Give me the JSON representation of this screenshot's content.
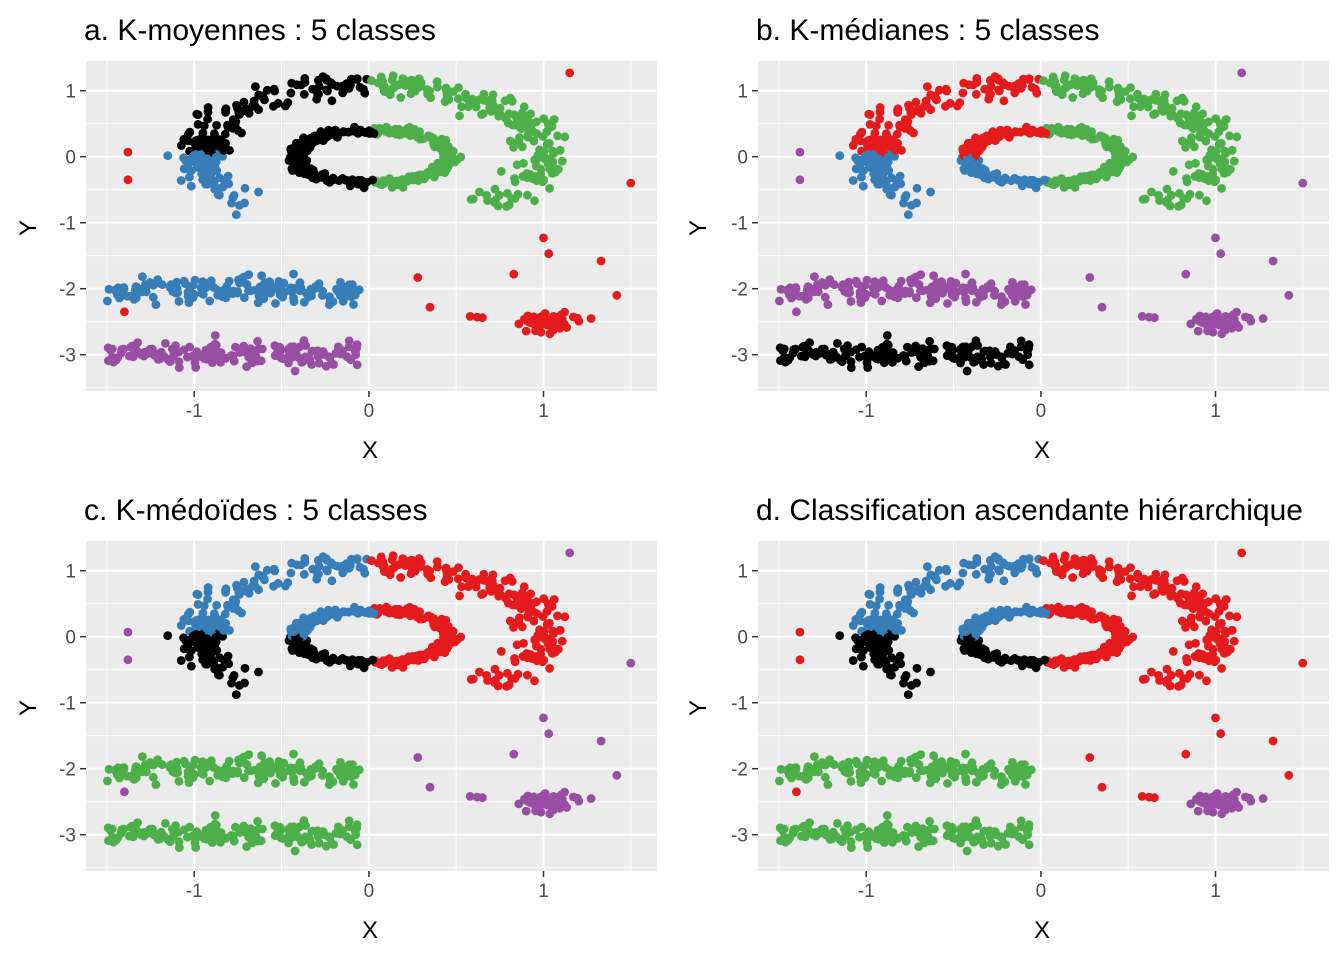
{
  "figure": {
    "shared_axes": {
      "xlabel": "X",
      "ylabel": "Y",
      "xlim": [
        -1.62,
        1.65
      ],
      "ylim": [
        -3.55,
        1.45
      ],
      "xticks": [
        -1,
        0,
        1
      ],
      "xtick_labels": [
        "-1",
        "0",
        "1"
      ],
      "yticks": [
        1,
        0,
        -1,
        -2,
        -3
      ],
      "ytick_labels": [
        "1",
        "0",
        "-1",
        "-2",
        "-3"
      ]
    },
    "cluster_colors": {
      "black": "#000000",
      "red": "#E41A1C",
      "blue": "#377EB8",
      "green": "#4DAF4A",
      "purple": "#984EA3"
    },
    "panel_background": "#EBEBEB",
    "grid_color": "#FFFFFF"
  },
  "chart_data": [
    {
      "type": "scatter",
      "title": "a. K-moyennes : 5 classes",
      "xlabel": "X",
      "ylabel": "Y",
      "xlim": [
        -1.62,
        1.65
      ],
      "ylim": [
        -3.55,
        1.45
      ],
      "grid": true,
      "legend": "none",
      "groups": {
        "outer_upper_left": "black",
        "outer_upper_right": "green",
        "outer_lower_left": "blue",
        "outer_lower_right": "green",
        "inner_upper_left": "black",
        "inner_upper_right": "green",
        "inner_lower_left": "black",
        "inner_lower_right": "green",
        "band_upper": "blue",
        "band_lower": "purple",
        "right_cluster": "red",
        "scatter_outliers": "red"
      },
      "series": [
        {
          "color": "black",
          "structures": [
            "outer arc, upper-left part",
            "inner ring, left part"
          ]
        },
        {
          "color": "green",
          "structures": [
            "outer arc, right part",
            "inner ring, right part"
          ]
        },
        {
          "color": "blue",
          "structures": [
            "outer arc, lower-left part",
            "band at y = -2"
          ]
        },
        {
          "color": "purple",
          "structures": [
            "band at y = -3"
          ]
        },
        {
          "color": "red",
          "structures": [
            "cluster near (1.0, -2.5)",
            "sparse outliers"
          ]
        }
      ]
    },
    {
      "type": "scatter",
      "title": "b. K-médianes : 5 classes",
      "xlabel": "X",
      "ylabel": "Y",
      "xlim": [
        -1.62,
        1.65
      ],
      "ylim": [
        -3.55,
        1.45
      ],
      "grid": true,
      "legend": "none",
      "groups": {
        "outer_upper_left": "red",
        "outer_upper_right": "green",
        "outer_lower_left": "blue",
        "outer_lower_right": "green",
        "inner_upper_left": "red",
        "inner_upper_right": "green",
        "inner_lower_left": "blue",
        "inner_lower_right": "green",
        "band_upper": "purple",
        "band_lower": "black",
        "right_cluster": "purple",
        "scatter_outliers": "purple"
      },
      "series": [
        {
          "color": "red",
          "structures": [
            "outer arc, upper part",
            "inner ring, upper part"
          ]
        },
        {
          "color": "blue",
          "structures": [
            "outer arc, lower-left part",
            "inner ring, lower part"
          ]
        },
        {
          "color": "green",
          "structures": [
            "outer arc, right part",
            "inner ring, right part"
          ]
        },
        {
          "color": "purple",
          "structures": [
            "band at y = -2",
            "cluster near (1.0, -2.5)",
            "sparse outliers"
          ]
        },
        {
          "color": "black",
          "structures": [
            "band at y = -3"
          ]
        }
      ]
    },
    {
      "type": "scatter",
      "title": "c. K-médoïdes : 5 classes",
      "xlabel": "X",
      "ylabel": "Y",
      "xlim": [
        -1.62,
        1.65
      ],
      "ylim": [
        -3.55,
        1.45
      ],
      "grid": true,
      "legend": "none",
      "groups": {
        "outer_upper_left": "blue",
        "outer_upper_right": "red",
        "outer_lower_left": "black",
        "outer_lower_right": "red",
        "inner_upper_left": "blue",
        "inner_upper_right": "red",
        "inner_lower_left": "black",
        "inner_lower_right": "red",
        "band_upper": "green",
        "band_lower": "green",
        "right_cluster": "purple",
        "scatter_outliers": "purple"
      },
      "series": [
        {
          "color": "blue",
          "structures": [
            "outer arc, upper part",
            "inner ring, upper part"
          ]
        },
        {
          "color": "black",
          "structures": [
            "outer arc, lower-left part",
            "inner ring, lower part"
          ]
        },
        {
          "color": "red",
          "structures": [
            "outer arc, right part",
            "inner ring, right part"
          ]
        },
        {
          "color": "green",
          "structures": [
            "band at y = -2",
            "band at y = -3"
          ]
        },
        {
          "color": "purple",
          "structures": [
            "cluster near (1.0, -2.5)",
            "sparse outliers"
          ]
        }
      ]
    },
    {
      "type": "scatter",
      "title": "d. Classification ascendante hiérarchique",
      "xlabel": "X",
      "ylabel": "Y",
      "xlim": [
        -1.62,
        1.65
      ],
      "ylim": [
        -3.55,
        1.45
      ],
      "grid": true,
      "legend": "none",
      "groups": {
        "outer_upper_left": "blue",
        "outer_upper_right": "red",
        "outer_lower_left": "black",
        "outer_lower_right": "red",
        "inner_upper_left": "blue",
        "inner_upper_right": "red",
        "inner_lower_left": "black",
        "inner_lower_right": "red",
        "band_upper": "green",
        "band_lower": "green",
        "right_cluster": "purple",
        "scatter_outliers": "red"
      },
      "series": [
        {
          "color": "blue",
          "structures": [
            "outer arc, upper-left part",
            "inner ring, upper-left part"
          ]
        },
        {
          "color": "red",
          "structures": [
            "outer arc, right part",
            "inner ring, right part",
            "sparse outliers"
          ]
        },
        {
          "color": "black",
          "structures": [
            "outer arc, lower-left part",
            "inner ring, lower-left part"
          ]
        },
        {
          "color": "green",
          "structures": [
            "band at y = -2",
            "band at y = -3"
          ]
        },
        {
          "color": "purple",
          "structures": [
            "cluster near (1.0, -2.5)"
          ]
        }
      ]
    }
  ]
}
